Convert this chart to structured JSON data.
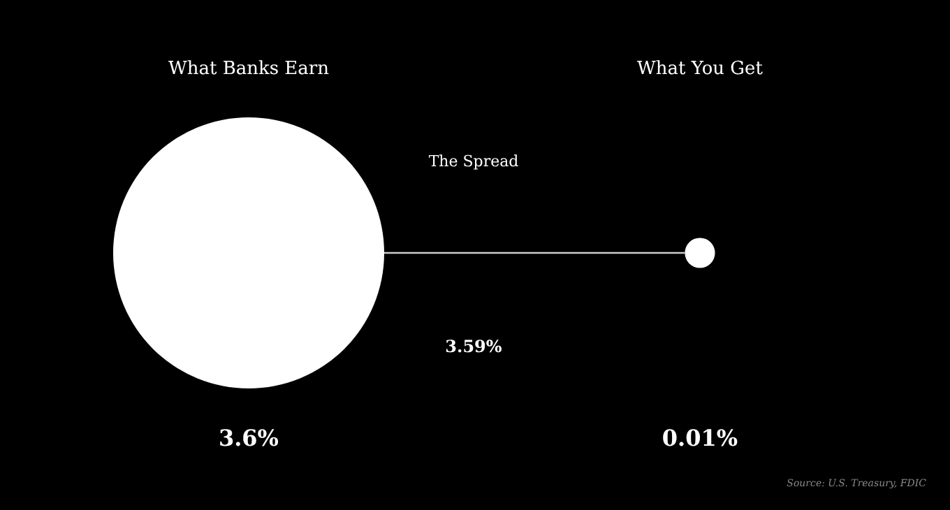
{
  "chart_data": {
    "type": "other",
    "categories": [
      "What Banks Earn",
      "What You Get"
    ],
    "values": [
      3.6,
      0.01
    ],
    "value_labels": [
      "3.6%",
      "0.01%"
    ],
    "color": "#ffffff",
    "annotations": [
      "The Spread",
      "3.59%",
      "Source: U.S. Treasury, FDIC"
    ]
  }
}
